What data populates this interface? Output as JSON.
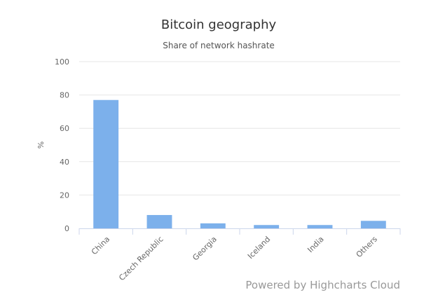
{
  "chart_data": {
    "type": "bar",
    "title": "Bitcoin geography",
    "subtitle": "Share of network hashrate",
    "xlabel": "",
    "ylabel": "%",
    "categories": [
      "China",
      "Czech Republic",
      "Georgia",
      "Iceland",
      "India",
      "Others"
    ],
    "values": [
      77,
      8,
      3,
      2,
      2,
      4.5
    ],
    "ylim": [
      0,
      100
    ],
    "yticks": [
      0,
      20,
      40,
      60,
      80,
      100
    ],
    "grid": true,
    "legend": "none",
    "bar_color": "#7cb0eb"
  },
  "credits": "Powered by Highcharts Cloud"
}
